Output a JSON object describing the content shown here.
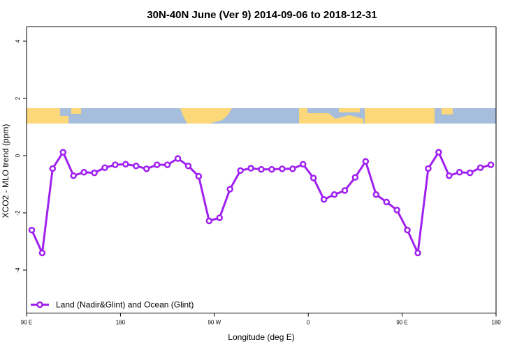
{
  "chart_data": {
    "type": "line",
    "title": "30N-40N June (Ver 9)   2014-09-06 to 2018-12-31",
    "x_label": "Longitude (deg E)",
    "y_label": "XCO2 - MLO trend (ppm)",
    "x": [
      95,
      105,
      115,
      125,
      135,
      145,
      155,
      165,
      175,
      185,
      195,
      205,
      215,
      225,
      235,
      245,
      255,
      265,
      275,
      285,
      295,
      305,
      315,
      325,
      335,
      345,
      355,
      365,
      375,
      385,
      395,
      405,
      415,
      425,
      435,
      445,
      455,
      465,
      475,
      485,
      495,
      505,
      515,
      525,
      535
    ],
    "series": [
      {
        "name": "Land (Nadir&Glint) and Ocean (Glint)",
        "color": "#a020f0",
        "values": [
          -2.6,
          -3.4,
          -0.45,
          0.12,
          -0.7,
          -0.58,
          -0.6,
          -0.42,
          -0.32,
          -0.3,
          -0.36,
          -0.46,
          -0.32,
          -0.32,
          -0.1,
          -0.36,
          -0.72,
          -2.28,
          -2.17,
          -1.17,
          -0.52,
          -0.44,
          -0.48,
          -0.48,
          -0.46,
          -0.46,
          -0.3,
          -0.78,
          -1.53,
          -1.36,
          -1.22,
          -0.76,
          -0.2,
          -1.36,
          -1.62,
          -1.9,
          -2.6,
          -3.4,
          -0.45,
          0.12,
          -0.7,
          -0.58,
          -0.6,
          -0.42,
          -0.32
        ]
      }
    ],
    "xlim": [
      90,
      540
    ],
    "xticks": [
      {
        "value": 90,
        "label": "90 E"
      },
      180,
      {
        "value": 270,
        "label": "90 W"
      },
      {
        "value": 360,
        "label": "0"
      },
      {
        "value": 450,
        "label": "90 E"
      },
      {
        "value": 540,
        "label": "180"
      }
    ],
    "ylim": [
      -5.5,
      4.5
    ],
    "yticks": [
      -4,
      -2,
      0,
      2,
      4
    ],
    "legend": "bottom-left"
  }
}
